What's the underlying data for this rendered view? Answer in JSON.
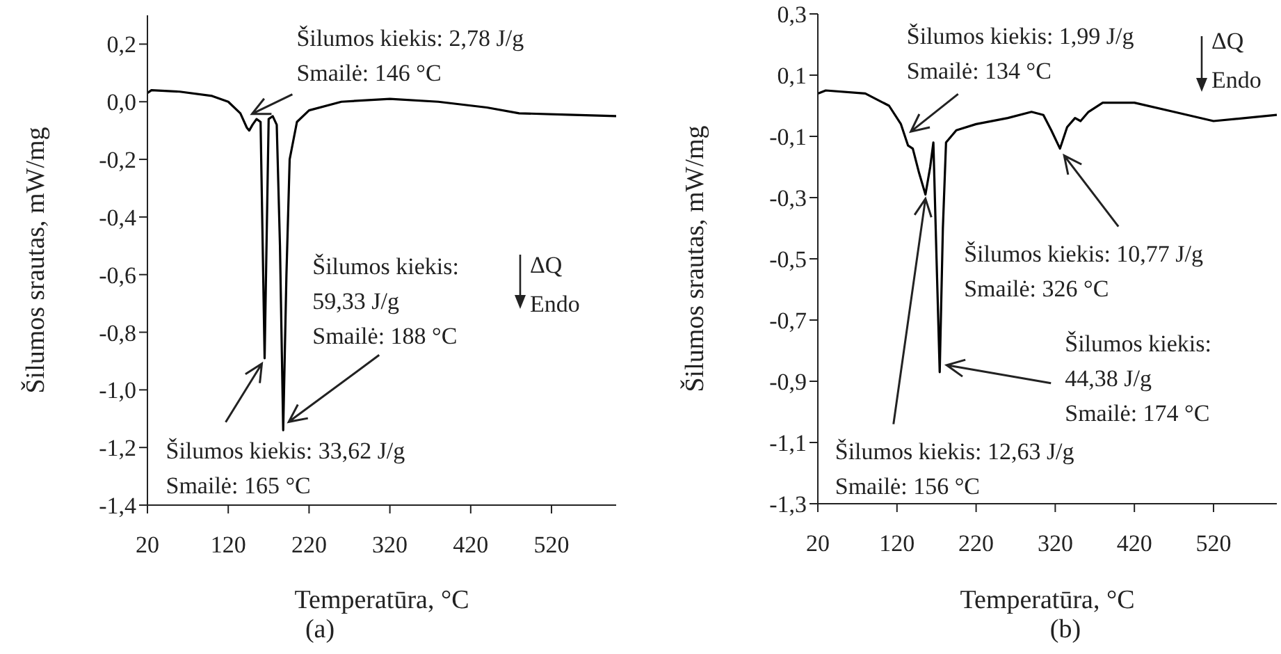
{
  "chart_data": [
    {
      "type": "line",
      "xlabel": "Temperatūra, °C",
      "ylabel": "Šilumos srautas, mW/mg",
      "xlim": [
        20,
        600
      ],
      "xticks": [
        20,
        120,
        220,
        320,
        420,
        520
      ],
      "ylim": [
        -1.4,
        0.3
      ],
      "yticks": [
        {
          "value": -1.4,
          "label": "-1,4"
        },
        {
          "value": -1.2,
          "label": "-1,2"
        },
        {
          "value": -1.0,
          "label": "-1,0"
        },
        {
          "value": -0.8,
          "label": "-0,8"
        },
        {
          "value": -0.6,
          "label": "-0,6"
        },
        {
          "value": -0.4,
          "label": "-0,4"
        },
        {
          "value": -0.2,
          "label": "-0,2"
        },
        {
          "value": 0,
          "label": "0,0"
        },
        {
          "value": 0.2,
          "label": "0,2"
        }
      ],
      "series": [
        {
          "color": "#000000",
          "x": [
            20,
            25,
            60,
            100,
            120,
            135,
            143,
            146,
            150,
            155,
            160,
            165,
            170,
            175,
            180,
            184,
            188,
            192,
            196,
            205,
            220,
            260,
            320,
            380,
            440,
            480,
            540,
            600
          ],
          "values": [
            0.03,
            0.04,
            0.035,
            0.02,
            0.0,
            -0.04,
            -0.09,
            -0.1,
            -0.08,
            -0.06,
            -0.07,
            -0.89,
            -0.06,
            -0.05,
            -0.08,
            -0.5,
            -1.14,
            -0.6,
            -0.2,
            -0.07,
            -0.03,
            0.0,
            0.01,
            0.0,
            -0.02,
            -0.04,
            -0.045,
            -0.05
          ]
        }
      ],
      "annotations": [
        {
          "text": "Šilumos kiekis: 2,78 J/g\nSmailė: 146 °C",
          "x": 146,
          "y": -0.1
        },
        {
          "text": "Šilumos kiekis: 33,62 J/g\nSmailė: 165 °C",
          "x": 165,
          "y": -0.89
        },
        {
          "text": "Šilumos kiekis:\n59,33 J/g\nSmailė: 188 °C",
          "x": 188,
          "y": -1.14
        },
        "ΔQ",
        "Endo",
        "(a)"
      ]
    },
    {
      "type": "line",
      "xlabel": "Temperatūra, °C",
      "ylabel": "Šilumos srautas, mW/mg",
      "xlim": [
        20,
        600
      ],
      "xticks": [
        20,
        120,
        220,
        320,
        420,
        520
      ],
      "ylim": [
        -1.3,
        0.3
      ],
      "yticks": [
        {
          "value": -1.3,
          "label": "-1,3"
        },
        {
          "value": -1.1,
          "label": "-1,1"
        },
        {
          "value": -0.9,
          "label": "-0,9"
        },
        {
          "value": -0.7,
          "label": "-0,7"
        },
        {
          "value": -0.5,
          "label": "-0,5"
        },
        {
          "value": -0.3,
          "label": "-0,3"
        },
        {
          "value": -0.1,
          "label": "-0,1"
        },
        {
          "value": 0.1,
          "label": "0,1"
        },
        {
          "value": 0.3,
          "label": "0,3"
        }
      ],
      "series": [
        {
          "color": "#000000",
          "x": [
            20,
            30,
            80,
            110,
            125,
            134,
            140,
            148,
            156,
            162,
            166,
            170,
            174,
            178,
            182,
            195,
            220,
            260,
            290,
            305,
            315,
            326,
            335,
            345,
            352,
            362,
            380,
            420,
            470,
            520,
            560,
            600
          ],
          "values": [
            0.04,
            0.05,
            0.04,
            0.0,
            -0.06,
            -0.13,
            -0.14,
            -0.22,
            -0.29,
            -0.2,
            -0.12,
            -0.5,
            -0.87,
            -0.4,
            -0.12,
            -0.08,
            -0.06,
            -0.04,
            -0.02,
            -0.03,
            -0.08,
            -0.14,
            -0.07,
            -0.04,
            -0.05,
            -0.02,
            0.01,
            0.01,
            -0.02,
            -0.05,
            -0.04,
            -0.03
          ]
        }
      ],
      "annotations": [
        {
          "text": "Šilumos kiekis: 1,99 J/g\nSmailė: 134 °C",
          "x": 134,
          "y": -0.13
        },
        {
          "text": "Šilumos kiekis: 12,63 J/g\nSmailė: 156 °C",
          "x": 156,
          "y": -0.29
        },
        {
          "text": "Šilumos kiekis:\n44,38 J/g\nSmailė: 174 °C",
          "x": 174,
          "y": -0.87
        },
        {
          "text": "Šilumos kiekis: 10,77 J/g\nSmailė: 326 °C",
          "x": 326,
          "y": -0.14
        },
        "ΔQ",
        "Endo",
        "(b)"
      ]
    }
  ]
}
